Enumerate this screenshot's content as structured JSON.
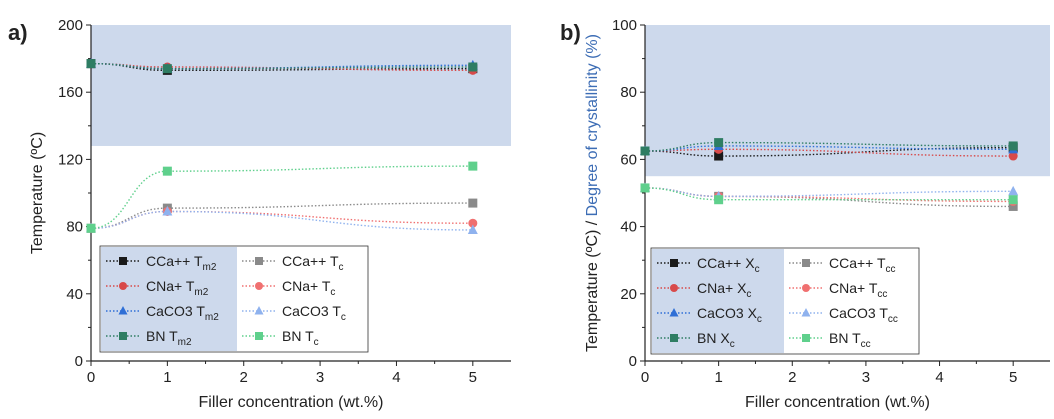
{
  "chart_data": [
    {
      "panel_label": "a)",
      "type": "line",
      "xlabel": "Filler concentration (wt.%)",
      "ylabel_parts": [
        {
          "text": "Temperature (ºC)",
          "color": "#222222"
        }
      ],
      "xlim": [
        0,
        5.5
      ],
      "ylim": [
        0,
        200
      ],
      "xticks": [
        0,
        1,
        2,
        3,
        4,
        5
      ],
      "yticks": [
        0,
        40,
        80,
        120,
        160,
        200
      ],
      "shaded_region": {
        "y_from": 128,
        "y_to": 200,
        "color": "#cdd9ec"
      },
      "legend_position": "bottom-center",
      "series": [
        {
          "name": "CCa++ T",
          "sub": "m2",
          "color": "#1a1a1a",
          "marker": "square",
          "x": [
            0,
            1,
            5
          ],
          "y": [
            177,
            173,
            174
          ]
        },
        {
          "name": "CNa+ T",
          "sub": "m2",
          "color": "#d84a4a",
          "marker": "circle",
          "x": [
            0,
            1,
            5
          ],
          "y": [
            177,
            175,
            173
          ]
        },
        {
          "name": "CaCO3 T",
          "sub": "m2",
          "color": "#2f6fd6",
          "marker": "triangle",
          "x": [
            0,
            1,
            5
          ],
          "y": [
            177,
            174,
            176
          ]
        },
        {
          "name": "BN T",
          "sub": "m2",
          "color": "#2e7d63",
          "marker": "square",
          "x": [
            0,
            1,
            5
          ],
          "y": [
            177,
            174,
            175
          ]
        },
        {
          "name": "CCa++ T",
          "sub": "c",
          "color": "#8a8a8a",
          "marker": "square",
          "x": [
            0,
            1,
            5
          ],
          "y": [
            79,
            91,
            94
          ]
        },
        {
          "name": "CNa+ T",
          "sub": "c",
          "color": "#f07070",
          "marker": "circle",
          "x": [
            0,
            1,
            5
          ],
          "y": [
            79,
            89,
            82
          ]
        },
        {
          "name": "CaCO3 T",
          "sub": "c",
          "color": "#8fb2ee",
          "marker": "triangle",
          "x": [
            0,
            1,
            5
          ],
          "y": [
            79,
            89,
            78
          ]
        },
        {
          "name": "BN T",
          "sub": "c",
          "color": "#5fd08c",
          "marker": "square",
          "x": [
            0,
            1,
            5
          ],
          "y": [
            79,
            113,
            116
          ]
        }
      ]
    },
    {
      "panel_label": "b)",
      "type": "line",
      "xlabel": "Filler concentration (wt.%)",
      "ylabel_parts": [
        {
          "text": "Temperature (ºC) / ",
          "color": "#222222"
        },
        {
          "text": "Degree of crystallinity (%)",
          "color": "#3d6db5"
        }
      ],
      "xlim": [
        0,
        5.5
      ],
      "ylim": [
        0,
        100
      ],
      "xticks": [
        0,
        1,
        2,
        3,
        4,
        5
      ],
      "yticks": [
        0,
        20,
        40,
        60,
        80,
        100
      ],
      "shaded_region": {
        "y_from": 55,
        "y_to": 100,
        "color": "#cdd9ec"
      },
      "legend_position": "bottom-left",
      "series": [
        {
          "name": "CCa++ X",
          "sub": "c",
          "color": "#1a1a1a",
          "marker": "square",
          "x": [
            0,
            1,
            5
          ],
          "y": [
            62.5,
            61,
            63.5
          ]
        },
        {
          "name": "CNa+ X",
          "sub": "c",
          "color": "#d84a4a",
          "marker": "circle",
          "x": [
            0,
            1,
            5
          ],
          "y": [
            62.5,
            63,
            61
          ]
        },
        {
          "name": "CaCO3 X",
          "sub": "c",
          "color": "#2f6fd6",
          "marker": "triangle",
          "x": [
            0,
            1,
            5
          ],
          "y": [
            62.5,
            64,
            63
          ]
        },
        {
          "name": "BN X",
          "sub": "c",
          "color": "#2e7d63",
          "marker": "square",
          "x": [
            0,
            1,
            5
          ],
          "y": [
            62.5,
            65,
            64
          ]
        },
        {
          "name": "CCa++ T",
          "sub": "cc",
          "color": "#8a8a8a",
          "marker": "square",
          "x": [
            0,
            1,
            5
          ],
          "y": [
            51.5,
            49,
            46
          ]
        },
        {
          "name": "CNa+ T",
          "sub": "cc",
          "color": "#f07070",
          "marker": "circle",
          "x": [
            0,
            1,
            5
          ],
          "y": [
            51.5,
            49,
            47.5
          ]
        },
        {
          "name": "CaCO3 T",
          "sub": "cc",
          "color": "#8fb2ee",
          "marker": "triangle",
          "x": [
            0,
            1,
            5
          ],
          "y": [
            51.5,
            49,
            50.5
          ]
        },
        {
          "name": "BN T",
          "sub": "cc",
          "color": "#5fd08c",
          "marker": "square",
          "x": [
            0,
            1,
            5
          ],
          "y": [
            51.5,
            48,
            48
          ]
        }
      ]
    }
  ]
}
